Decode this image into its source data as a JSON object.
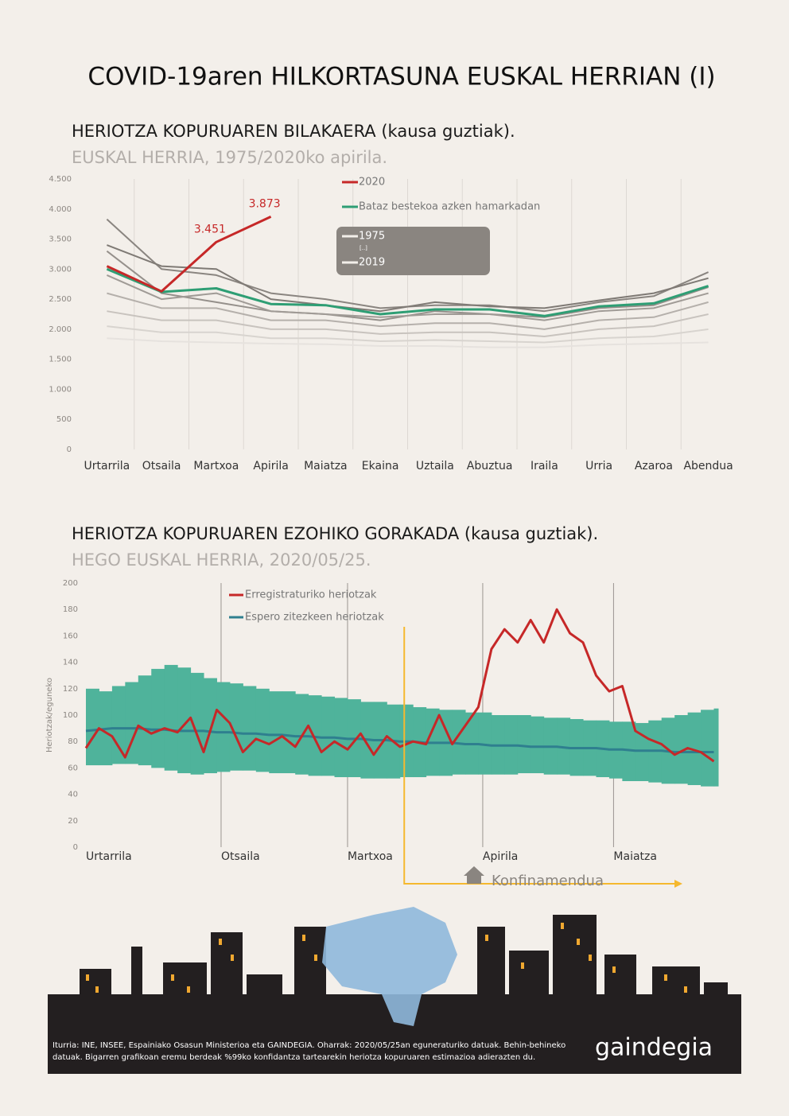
{
  "title": "COVID-19aren HILKORTASUNA EUSKAL HERRIAN (I)",
  "chart_data": [
    {
      "type": "line",
      "title": "HERIOTZA KOPURUAREN BILAKAERA (kausa guztiak).",
      "subtitle": "EUSKAL HERRIA, 1975/2020ko apirila.",
      "categories": [
        "Urtarrila",
        "Otsaila",
        "Martxoa",
        "Apirila",
        "Maiatza",
        "Ekaina",
        "Uztaila",
        "Abuztua",
        "Iraila",
        "Urria",
        "Azaroa",
        "Abendua"
      ],
      "ylim": [
        0,
        4500
      ],
      "yticks": [
        0,
        500,
        {
          "value": 1000,
          "label": "1.000"
        },
        {
          "value": 1500,
          "label": "1.500"
        },
        {
          "value": 2000,
          "label": "2.000"
        },
        {
          "value": 2500,
          "label": "2.500"
        },
        {
          "value": 3000,
          "label": "3.000"
        },
        {
          "value": 3500,
          "label": "3.500"
        },
        {
          "value": 4000,
          "label": "4.000"
        },
        {
          "value": 4500,
          "label": "4.500"
        }
      ],
      "legend_note": "[..]",
      "series": [
        {
          "name": "2020",
          "color": "#c62828",
          "values": [
            3050,
            2630,
            3451,
            3873,
            null,
            null,
            null,
            null,
            null,
            null,
            null,
            null
          ],
          "value_labels": [
            null,
            null,
            "3.451",
            "3.873",
            null,
            null,
            null,
            null,
            null,
            null,
            null,
            null
          ]
        },
        {
          "name": "Bataz bestekoa azken hamarkadan",
          "color": "#2e9e74",
          "values": [
            3000,
            2620,
            2680,
            2420,
            2400,
            2250,
            2330,
            2330,
            2220,
            2380,
            2430,
            2720
          ]
        },
        {
          "name": "1975",
          "color": "#e6e2de",
          "values": [
            1850,
            1800,
            1780,
            1760,
            1750,
            1720,
            1720,
            1700,
            1700,
            1740,
            1760,
            1780
          ]
        },
        {
          "color": "#d8d4cf",
          "values": [
            2050,
            1950,
            1950,
            1850,
            1850,
            1800,
            1820,
            1800,
            1780,
            1850,
            1880,
            2000
          ]
        },
        {
          "color": "#c8c3be",
          "values": [
            2300,
            2150,
            2150,
            2000,
            2000,
            1920,
            1950,
            1950,
            1880,
            2000,
            2050,
            2250
          ]
        },
        {
          "color": "#b5b0ab",
          "values": [
            2600,
            2350,
            2350,
            2150,
            2150,
            2050,
            2100,
            2100,
            2000,
            2150,
            2200,
            2450
          ]
        },
        {
          "color": "#a09b96",
          "values": [
            2900,
            2500,
            2600,
            2300,
            2250,
            2200,
            2250,
            2250,
            2150,
            2300,
            2350,
            2600
          ]
        },
        {
          "color": "#7f7a75",
          "values": [
            3400,
            3050,
            3000,
            2500,
            2400,
            2300,
            2450,
            2380,
            2350,
            2480,
            2600,
            2850
          ]
        },
        {
          "color": "#8a8580",
          "values": [
            3830,
            3000,
            2900,
            2600,
            2500,
            2350,
            2400,
            2400,
            2300,
            2450,
            2550,
            2950
          ]
        },
        {
          "name": "2019",
          "color": "#95908b",
          "values": [
            3300,
            2600,
            2450,
            2300,
            2250,
            2150,
            2300,
            2250,
            2200,
            2350,
            2400,
            2700
          ]
        }
      ]
    },
    {
      "type": "line",
      "title": "HERIOTZA KOPURUAREN EZOHIKO GORAKADA (kausa guztiak).",
      "subtitle": "HEGO EUSKAL HERRIA, 2020/05/25.",
      "ylabel": "Heriotzak/eguneko",
      "x": [
        1,
        4,
        7,
        10,
        13,
        16,
        19,
        22,
        25,
        28,
        31,
        34,
        37,
        40,
        43,
        46,
        49,
        52,
        55,
        58,
        61,
        64,
        67,
        70,
        73,
        76,
        79,
        82,
        85,
        88,
        91,
        94,
        97,
        100,
        103,
        106,
        109,
        112,
        115,
        118,
        121,
        124,
        127,
        130,
        133,
        136,
        139,
        142,
        145
      ],
      "xlim": [
        1,
        146
      ],
      "xticks": [
        {
          "value": 1,
          "label": "Urtarrila"
        },
        {
          "value": 32,
          "label": "Otsaila"
        },
        {
          "value": 61,
          "label": "Martxoa"
        },
        {
          "value": 92,
          "label": "Apirila"
        },
        {
          "value": 122,
          "label": "Maiatza"
        }
      ],
      "xgrid": true,
      "ylim": [
        0,
        200
      ],
      "yticks": [
        0,
        20,
        40,
        60,
        80,
        100,
        120,
        140,
        160,
        180,
        200
      ],
      "band": {
        "color": "#4fb39b",
        "lower": [
          62,
          62,
          63,
          63,
          62,
          60,
          58,
          56,
          55,
          56,
          57,
          58,
          58,
          57,
          56,
          56,
          55,
          54,
          54,
          53,
          53,
          52,
          52,
          52,
          53,
          53,
          54,
          54,
          55,
          55,
          55,
          55,
          55,
          56,
          56,
          55,
          55,
          54,
          54,
          53,
          52,
          50,
          50,
          49,
          48,
          48,
          47,
          46,
          46
        ],
        "upper": [
          120,
          118,
          122,
          125,
          130,
          135,
          138,
          136,
          132,
          128,
          125,
          124,
          122,
          120,
          118,
          118,
          116,
          115,
          114,
          113,
          112,
          110,
          110,
          108,
          108,
          106,
          105,
          104,
          104,
          102,
          102,
          100,
          100,
          100,
          99,
          98,
          98,
          97,
          96,
          96,
          95,
          95,
          94,
          96,
          98,
          100,
          102,
          104,
          105
        ]
      },
      "annotation": {
        "text": "Konfinamendua",
        "x": 74
      },
      "series": [
        {
          "name": "Erregistraturiko heriotzak",
          "color": "#c62828",
          "values": [
            75,
            90,
            84,
            68,
            92,
            86,
            90,
            87,
            98,
            72,
            104,
            94,
            72,
            82,
            78,
            84,
            76,
            92,
            72,
            80,
            74,
            86,
            70,
            84,
            76,
            80,
            78,
            100,
            78,
            92,
            106,
            150,
            165,
            155,
            172,
            155,
            180,
            162,
            155,
            130,
            118,
            122,
            88,
            82,
            78,
            70,
            75,
            72,
            65
          ]
        },
        {
          "name": "Espero zitezkeen heriotzak",
          "color": "#2f7f8f",
          "values": [
            88,
            89,
            90,
            90,
            90,
            89,
            89,
            88,
            88,
            88,
            87,
            87,
            86,
            86,
            85,
            85,
            84,
            84,
            83,
            83,
            82,
            82,
            81,
            81,
            80,
            80,
            79,
            79,
            79,
            78,
            78,
            77,
            77,
            77,
            76,
            76,
            76,
            75,
            75,
            75,
            74,
            74,
            73,
            73,
            73,
            72,
            72,
            72,
            72
          ]
        }
      ]
    }
  ],
  "footer": {
    "source_lines": [
      "Iturria: INE, INSEE, Espainiako Osasun Ministerioa eta GAINDEGIA. Oharrak: 2020/05/25an eguneraturiko datuak. Behin-behineko",
      "datuak. Bigarren grafikoan eremu berdeak %99ko konfidantza tartearekin heriotza kopuruaren estimazioa adierazten du."
    ],
    "logo": "gaindegia"
  }
}
